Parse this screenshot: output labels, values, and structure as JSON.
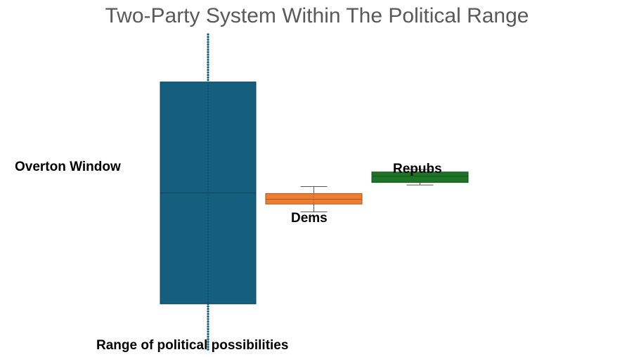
{
  "chart_data": {
    "type": "box",
    "title": "Two-Party System Within The Political Range",
    "xlabel": "Range of political possibilities",
    "ylabel": "",
    "ylim": [
      0,
      100
    ],
    "grid": false,
    "series": [
      {
        "name": "Overton Window",
        "color": "#165e7e",
        "min": 0,
        "q1": 15,
        "median": 50,
        "q3": 85,
        "max": 100
      },
      {
        "name": "Dems",
        "color": "#ed7d31",
        "min": 44,
        "q1": 46.5,
        "median": 48,
        "q3": 49.8,
        "max": 52
      },
      {
        "name": "Repubs",
        "color": "#1e7426",
        "min": 52.5,
        "q1": 53.3,
        "median": 55.3,
        "q3": 56.6,
        "max": 57.4
      }
    ]
  }
}
